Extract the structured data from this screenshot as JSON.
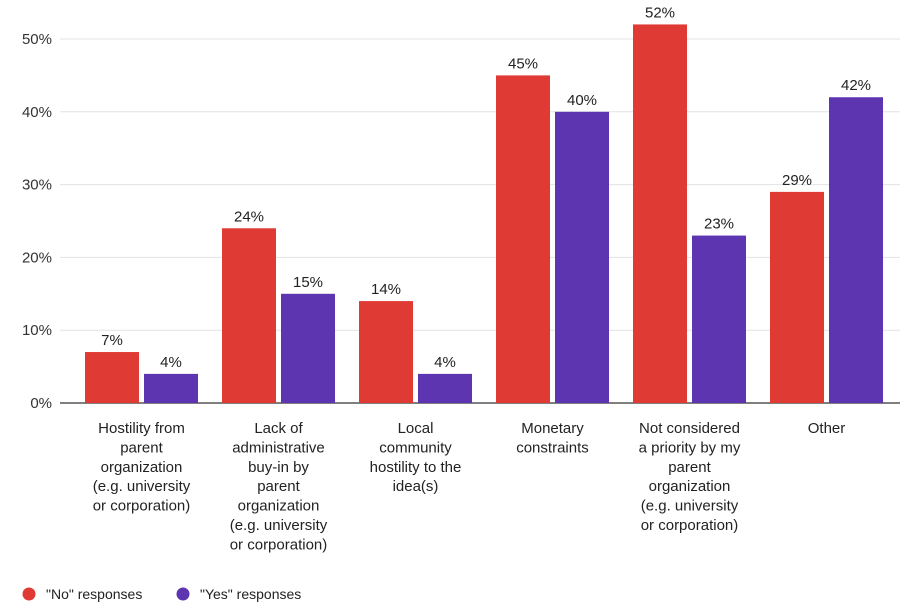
{
  "chart_data": {
    "type": "bar",
    "categories": [
      [
        "Hostility from",
        "parent",
        "organization",
        "(e.g. university",
        "or corporation)"
      ],
      [
        "Lack of",
        "administrative",
        "buy-in by",
        "parent",
        "organization",
        "(e.g. university",
        "or corporation)"
      ],
      [
        "Local",
        "community",
        "hostility to the",
        "idea(s)"
      ],
      [
        "Monetary",
        "constraints"
      ],
      [
        "Not considered",
        "a priority by my",
        "parent",
        "organization",
        "(e.g. university",
        "or corporation)"
      ],
      [
        "Other"
      ]
    ],
    "series": [
      {
        "name": "\"No\" responses",
        "color": "#e03a34",
        "values": [
          7,
          24,
          14,
          45,
          52,
          29
        ],
        "labels": [
          "7%",
          "24%",
          "14%",
          "45%",
          "52%",
          "29%"
        ]
      },
      {
        "name": "\"Yes\" responses",
        "color": "#5e35b1",
        "values": [
          4,
          15,
          4,
          40,
          23,
          42
        ],
        "labels": [
          "4%",
          "15%",
          "4%",
          "40%",
          "23%",
          "42%"
        ]
      }
    ],
    "yticks": [
      "0%",
      "10%",
      "20%",
      "30%",
      "40%",
      "50%"
    ],
    "ylim": [
      0,
      52
    ],
    "grid": true,
    "legend": "bottom-left"
  }
}
